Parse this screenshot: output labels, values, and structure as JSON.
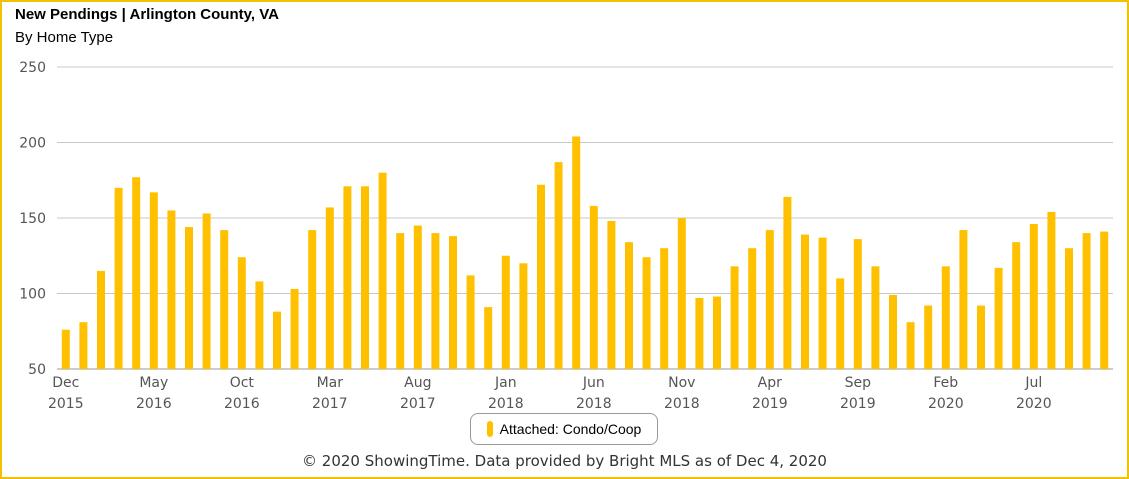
{
  "header": {
    "title": "New Pendings | Arlington County, VA",
    "subtitle": "By Home Type"
  },
  "legend": {
    "label": "Attached: Condo/Coop"
  },
  "footer": {
    "text": "© 2020 ShowingTime. Data provided by Bright MLS as of Dec 4, 2020"
  },
  "chart_data": {
    "type": "bar",
    "title": "New Pendings | Arlington County, VA",
    "subtitle": "By Home Type",
    "xlabel": "",
    "ylabel": "",
    "ylim": [
      50,
      250
    ],
    "yticks": [
      "50",
      "100",
      "150",
      "200",
      "250"
    ],
    "grid": true,
    "bar_color": "#ffc000",
    "legend_position": "bottom-center",
    "categories": [
      "Dec 2015",
      "Jan 2016",
      "Feb 2016",
      "Mar 2016",
      "Apr 2016",
      "May 2016",
      "Jun 2016",
      "Jul 2016",
      "Aug 2016",
      "Sep 2016",
      "Oct 2016",
      "Nov 2016",
      "Dec 2016",
      "Jan 2017",
      "Feb 2017",
      "Mar 2017",
      "Apr 2017",
      "May 2017",
      "Jun 2017",
      "Jul 2017",
      "Aug 2017",
      "Sep 2017",
      "Oct 2017",
      "Nov 2017",
      "Dec 2017",
      "Jan 2018",
      "Feb 2018",
      "Mar 2018",
      "Apr 2018",
      "May 2018",
      "Jun 2018",
      "Jul 2018",
      "Aug 2018",
      "Sep 2018",
      "Oct 2018",
      "Nov 2018",
      "Dec 2018",
      "Jan 2019",
      "Feb 2019",
      "Mar 2019",
      "Apr 2019",
      "May 2019",
      "Jun 2019",
      "Jul 2019",
      "Aug 2019",
      "Sep 2019",
      "Oct 2019",
      "Nov 2019",
      "Dec 2019",
      "Jan 2020",
      "Feb 2020",
      "Mar 2020",
      "Apr 2020",
      "May 2020",
      "Jun 2020",
      "Jul 2020",
      "Aug 2020",
      "Sep 2020",
      "Oct 2020",
      "Nov 2020"
    ],
    "xtick_labels": [
      {
        "index": 0,
        "month": "Dec",
        "year": "2015"
      },
      {
        "index": 5,
        "month": "May",
        "year": "2016"
      },
      {
        "index": 10,
        "month": "Oct",
        "year": "2016"
      },
      {
        "index": 15,
        "month": "Mar",
        "year": "2017"
      },
      {
        "index": 20,
        "month": "Aug",
        "year": "2017"
      },
      {
        "index": 25,
        "month": "Jan",
        "year": "2018"
      },
      {
        "index": 30,
        "month": "Jun",
        "year": "2018"
      },
      {
        "index": 35,
        "month": "Nov",
        "year": "2018"
      },
      {
        "index": 40,
        "month": "Apr",
        "year": "2019"
      },
      {
        "index": 45,
        "month": "Sep",
        "year": "2019"
      },
      {
        "index": 50,
        "month": "Feb",
        "year": "2020"
      },
      {
        "index": 55,
        "month": "Jul",
        "year": "2020"
      }
    ],
    "series": [
      {
        "name": "Attached: Condo/Coop",
        "color": "#ffc000",
        "values": [
          76,
          81,
          115,
          170,
          177,
          167,
          155,
          144,
          153,
          142,
          124,
          108,
          88,
          103,
          142,
          157,
          171,
          171,
          180,
          140,
          145,
          140,
          138,
          112,
          91,
          125,
          120,
          172,
          187,
          204,
          158,
          148,
          134,
          124,
          130,
          150,
          97,
          98,
          118,
          130,
          142,
          164,
          139,
          137,
          110,
          136,
          118,
          99,
          81,
          92,
          118,
          142,
          92,
          117,
          134,
          146,
          154,
          130,
          140,
          141
        ]
      }
    ]
  }
}
